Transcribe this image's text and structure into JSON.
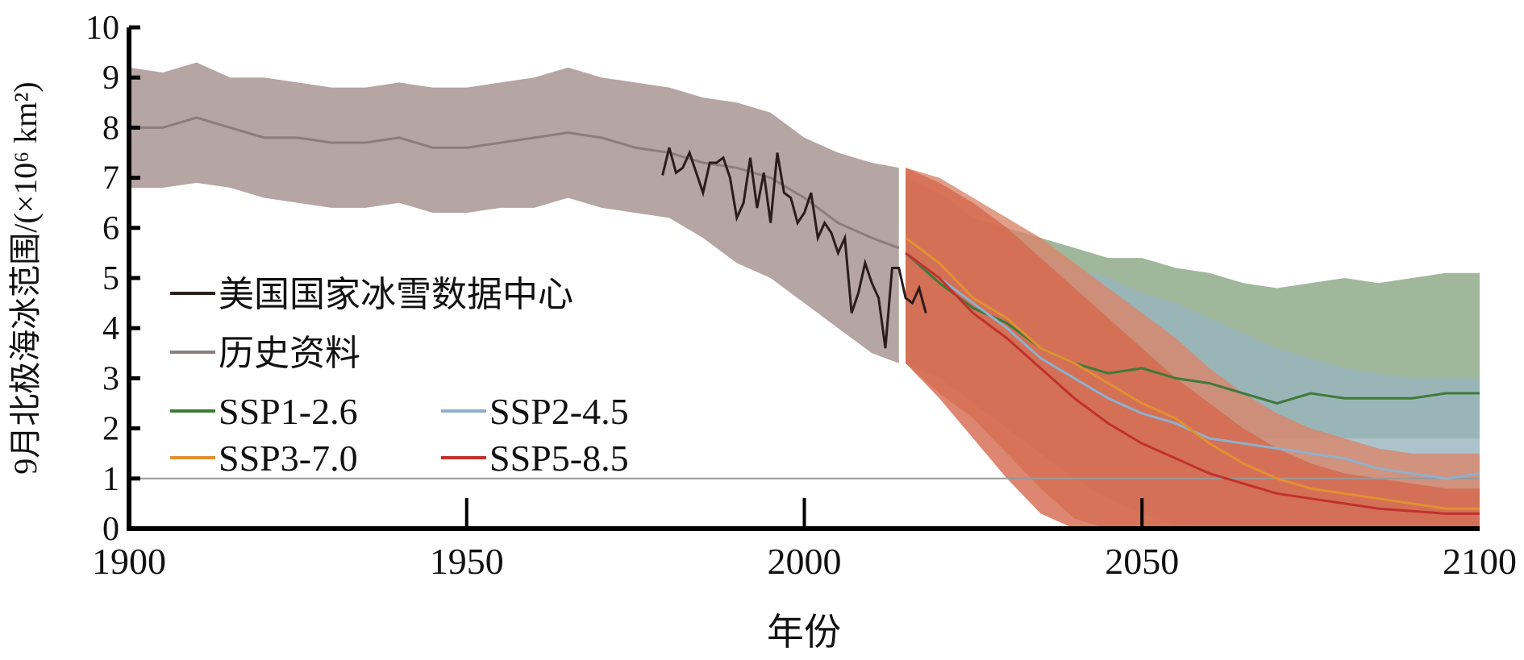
{
  "chart_data": {
    "type": "line",
    "title": "",
    "xlabel": "年份",
    "ylabel": "9月北极海冰范围/(×10⁶ km²)",
    "xlim": [
      1900,
      2100
    ],
    "ylim": [
      0,
      10
    ],
    "xticks": [
      "1900",
      "1950",
      "2000",
      "2050",
      "2100"
    ],
    "yticks": [
      "0",
      "1",
      "2",
      "3",
      "4",
      "5",
      "6",
      "7",
      "8",
      "9",
      "10"
    ],
    "reference_line": {
      "y": 1,
      "color": "#999999"
    },
    "legend": {
      "placement": "left-middle"
    },
    "series": [
      {
        "name": "美国国家冰雪数据中心",
        "color": "#2a1e1c",
        "x": [
          1979,
          1980,
          1981,
          1982,
          1983,
          1984,
          1985,
          1986,
          1987,
          1988,
          1989,
          1990,
          1991,
          1992,
          1993,
          1994,
          1995,
          1996,
          1997,
          1998,
          1999,
          2000,
          2001,
          2002,
          2003,
          2004,
          2005,
          2006,
          2007,
          2008,
          2009,
          2010,
          2011,
          2012,
          2013,
          2014,
          2015,
          2016,
          2017,
          2018
        ],
        "values": [
          7.05,
          7.6,
          7.1,
          7.2,
          7.5,
          7.1,
          6.7,
          7.3,
          7.3,
          7.4,
          7.0,
          6.2,
          6.5,
          7.4,
          6.4,
          7.1,
          6.1,
          7.5,
          6.7,
          6.6,
          6.1,
          6.3,
          6.7,
          5.8,
          6.1,
          5.9,
          5.5,
          5.8,
          4.3,
          4.7,
          5.3,
          4.9,
          4.6,
          3.6,
          5.2,
          5.2,
          4.6,
          4.5,
          4.8,
          4.3
        ]
      },
      {
        "name": "历史资料",
        "color": "#8a7e7c",
        "band_color": "#b5a5a3",
        "x": [
          1900,
          1905,
          1910,
          1915,
          1920,
          1925,
          1930,
          1935,
          1940,
          1945,
          1950,
          1955,
          1960,
          1965,
          1970,
          1975,
          1980,
          1985,
          1990,
          1995,
          2000,
          2005,
          2010,
          2014
        ],
        "values": [
          8.0,
          8.0,
          8.2,
          8.0,
          7.8,
          7.8,
          7.7,
          7.7,
          7.8,
          7.6,
          7.6,
          7.7,
          7.8,
          7.9,
          7.8,
          7.6,
          7.5,
          7.3,
          7.2,
          7.0,
          6.6,
          6.1,
          5.8,
          5.6
        ],
        "upper": [
          9.2,
          9.1,
          9.3,
          9.0,
          9.0,
          8.9,
          8.8,
          8.8,
          8.9,
          8.8,
          8.8,
          8.9,
          9.0,
          9.2,
          9.0,
          8.9,
          8.8,
          8.6,
          8.5,
          8.3,
          7.8,
          7.5,
          7.3,
          7.2
        ],
        "lower": [
          6.8,
          6.8,
          6.9,
          6.8,
          6.6,
          6.5,
          6.4,
          6.4,
          6.5,
          6.3,
          6.3,
          6.4,
          6.4,
          6.6,
          6.4,
          6.3,
          6.2,
          5.8,
          5.3,
          5.0,
          4.5,
          4.0,
          3.5,
          3.3
        ]
      },
      {
        "name": "SSP1-2.6",
        "color": "#3e7a3a",
        "band_color": "#8aa583",
        "x": [
          2015,
          2020,
          2025,
          2030,
          2035,
          2040,
          2045,
          2050,
          2055,
          2060,
          2065,
          2070,
          2075,
          2080,
          2085,
          2090,
          2095,
          2100
        ],
        "values": [
          5.5,
          4.9,
          4.4,
          4.1,
          3.6,
          3.3,
          3.1,
          3.2,
          3.0,
          2.9,
          2.7,
          2.5,
          2.7,
          2.6,
          2.6,
          2.6,
          2.7,
          2.7
        ],
        "upper": [
          7.0,
          6.5,
          6.2,
          6.0,
          5.8,
          5.6,
          5.4,
          5.4,
          5.2,
          5.1,
          4.9,
          4.8,
          4.9,
          5.0,
          4.9,
          5.0,
          5.1,
          5.1
        ],
        "lower": [
          3.5,
          3.0,
          2.7,
          2.4,
          2.2,
          2.1,
          2.0,
          2.0,
          1.9,
          1.9,
          1.8,
          1.8,
          1.8,
          1.8,
          1.8,
          1.8,
          1.8,
          1.8
        ]
      },
      {
        "name": "SSP2-4.5",
        "color": "#8fb0cc",
        "band_color": "#98b4bf",
        "x": [
          2015,
          2020,
          2025,
          2030,
          2035,
          2040,
          2045,
          2050,
          2055,
          2060,
          2065,
          2070,
          2075,
          2080,
          2085,
          2090,
          2095,
          2100
        ],
        "values": [
          5.5,
          5.0,
          4.5,
          4.0,
          3.4,
          3.0,
          2.6,
          2.3,
          2.1,
          1.8,
          1.7,
          1.6,
          1.5,
          1.4,
          1.2,
          1.1,
          1.0,
          1.1
        ],
        "upper": [
          7.0,
          6.7,
          6.2,
          5.8,
          5.5,
          5.2,
          5.0,
          4.7,
          4.5,
          4.2,
          3.9,
          3.6,
          3.4,
          3.2,
          3.1,
          3.0,
          3.0,
          3.0
        ],
        "lower": [
          3.3,
          3.0,
          2.5,
          2.0,
          1.5,
          1.0,
          0.6,
          0.3,
          0.1,
          0,
          0,
          0,
          0,
          0,
          0,
          0,
          0,
          0
        ]
      },
      {
        "name": "SSP3-7.0",
        "color": "#e39033",
        "band_color": "#d9866a",
        "x": [
          2015,
          2020,
          2025,
          2030,
          2035,
          2040,
          2045,
          2050,
          2055,
          2060,
          2065,
          2070,
          2075,
          2080,
          2085,
          2090,
          2095,
          2100
        ],
        "values": [
          5.8,
          5.3,
          4.6,
          4.2,
          3.6,
          3.3,
          2.9,
          2.5,
          2.2,
          1.7,
          1.3,
          1.0,
          0.8,
          0.7,
          0.6,
          0.5,
          0.4,
          0.4
        ],
        "upper": [
          7.2,
          7.0,
          6.6,
          6.2,
          5.8,
          5.3,
          4.8,
          4.3,
          3.8,
          3.2,
          2.7,
          2.3,
          2.0,
          1.8,
          1.6,
          1.5,
          1.5,
          1.5
        ],
        "lower": [
          3.3,
          2.7,
          2.2,
          1.5,
          0.8,
          0.2,
          0,
          0,
          0,
          0,
          0,
          0,
          0,
          0,
          0,
          0,
          0,
          0
        ]
      },
      {
        "name": "SSP5-8.5",
        "color": "#c1312b",
        "band_color": "#d4684e",
        "x": [
          2015,
          2020,
          2025,
          2030,
          2035,
          2040,
          2045,
          2050,
          2055,
          2060,
          2065,
          2070,
          2075,
          2080,
          2085,
          2090,
          2095,
          2100
        ],
        "values": [
          5.5,
          5.0,
          4.3,
          3.8,
          3.2,
          2.6,
          2.1,
          1.7,
          1.4,
          1.1,
          0.9,
          0.7,
          0.6,
          0.5,
          0.4,
          0.35,
          0.3,
          0.3
        ],
        "upper": [
          7.2,
          6.9,
          6.5,
          6.0,
          5.4,
          4.8,
          4.2,
          3.6,
          3.0,
          2.5,
          2.0,
          1.6,
          1.3,
          1.1,
          1.0,
          0.9,
          0.8,
          0.8
        ],
        "lower": [
          3.3,
          2.6,
          1.8,
          1.0,
          0.3,
          0,
          0,
          0,
          0,
          0,
          0,
          0,
          0,
          0,
          0,
          0,
          0,
          0
        ]
      }
    ]
  }
}
